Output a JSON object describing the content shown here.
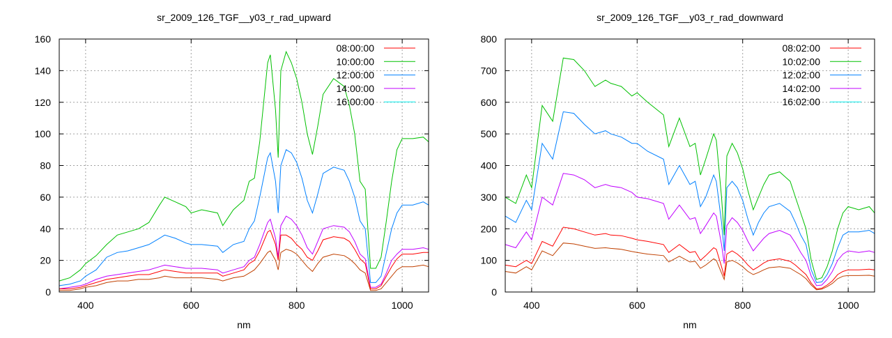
{
  "chart_data": [
    {
      "type": "line",
      "title": "sr_2009_126_TGF__y03_r_rad_upward",
      "xlabel": "nm",
      "ylabel": "",
      "xlim": [
        350,
        1050
      ],
      "ylim": [
        0,
        160
      ],
      "xticks": [
        400,
        600,
        800,
        1000
      ],
      "yticks": [
        0,
        20,
        40,
        60,
        80,
        100,
        120,
        140,
        160
      ],
      "grid": true,
      "legend": "top-right",
      "x": [
        350,
        370,
        390,
        400,
        420,
        440,
        460,
        480,
        500,
        520,
        540,
        550,
        570,
        590,
        600,
        620,
        650,
        660,
        680,
        700,
        710,
        720,
        730,
        745,
        750,
        760,
        765,
        770,
        780,
        790,
        800,
        810,
        820,
        830,
        840,
        850,
        870,
        890,
        900,
        910,
        920,
        930,
        940,
        950,
        960,
        970,
        980,
        990,
        1000,
        1020,
        1040,
        1050
      ],
      "series": [
        {
          "name": "08:00:00",
          "color": "#ff0000",
          "line_color": "#ff0000",
          "values": [
            2,
            2,
            3,
            4,
            6,
            8,
            9,
            10,
            11,
            11,
            13,
            14,
            13,
            12,
            12,
            12,
            12,
            10,
            12,
            14,
            18,
            20,
            26,
            38,
            39,
            30,
            20,
            36,
            36,
            34,
            30,
            27,
            22,
            20,
            26,
            33,
            35,
            34,
            32,
            27,
            21,
            18,
            2,
            2,
            4,
            10,
            16,
            21,
            24,
            24,
            25,
            25
          ]
        },
        {
          "name": "10:00:00",
          "color": "#00c000",
          "line_color": "#00c000",
          "values": [
            7,
            9,
            14,
            18,
            23,
            30,
            36,
            38,
            40,
            44,
            55,
            60,
            57,
            54,
            50,
            52,
            50,
            42,
            52,
            58,
            70,
            72,
            95,
            145,
            150,
            115,
            85,
            140,
            152,
            145,
            135,
            120,
            100,
            87,
            105,
            125,
            135,
            130,
            118,
            100,
            70,
            65,
            15,
            15,
            22,
            45,
            70,
            90,
            97,
            97,
            98,
            95
          ]
        },
        {
          "name": "12:00:00",
          "color": "#0080ff",
          "line_color": "#0080ff",
          "values": [
            4,
            5,
            7,
            10,
            14,
            22,
            25,
            26,
            28,
            30,
            34,
            36,
            34,
            31,
            30,
            30,
            29,
            25,
            30,
            32,
            40,
            45,
            60,
            85,
            88,
            70,
            50,
            80,
            90,
            88,
            82,
            72,
            58,
            50,
            62,
            75,
            79,
            77,
            70,
            60,
            45,
            40,
            6,
            6,
            10,
            25,
            40,
            50,
            55,
            55,
            57,
            55
          ]
        },
        {
          "name": "14:00:00",
          "color": "#c000ff",
          "line_color": "#c000ff",
          "values": [
            2,
            3,
            4,
            5,
            8,
            10,
            11,
            12,
            13,
            14,
            16,
            17,
            16,
            15,
            15,
            15,
            14,
            12,
            14,
            16,
            20,
            22,
            30,
            44,
            46,
            34,
            22,
            42,
            48,
            46,
            42,
            36,
            28,
            24,
            32,
            40,
            42,
            41,
            38,
            32,
            24,
            21,
            3,
            3,
            5,
            12,
            20,
            24,
            27,
            27,
            28,
            27
          ]
        },
        {
          "name": "16:00:00",
          "color": "#00eeee",
          "line_color": "#c04000",
          "values": [
            1,
            1,
            2,
            3,
            4,
            6,
            7,
            7,
            8,
            8,
            9,
            10,
            9,
            9,
            9,
            9,
            8,
            7,
            9,
            10,
            12,
            14,
            18,
            25,
            26,
            20,
            14,
            25,
            27,
            26,
            24,
            20,
            16,
            13,
            18,
            22,
            24,
            23,
            21,
            18,
            14,
            12,
            1,
            1,
            2,
            6,
            10,
            14,
            16,
            16,
            17,
            16
          ]
        }
      ]
    },
    {
      "type": "line",
      "title": "sr_2009_126_TGF__y03_r_rad_downward",
      "xlabel": "nm",
      "ylabel": "",
      "xlim": [
        350,
        1050
      ],
      "ylim": [
        0,
        800
      ],
      "xticks": [
        400,
        600,
        800,
        1000
      ],
      "yticks": [
        0,
        100,
        200,
        300,
        400,
        500,
        600,
        700,
        800
      ],
      "grid": true,
      "legend": "top-right",
      "x": [
        350,
        370,
        390,
        400,
        420,
        440,
        460,
        480,
        500,
        520,
        540,
        550,
        570,
        590,
        600,
        620,
        650,
        660,
        680,
        700,
        710,
        720,
        730,
        745,
        750,
        760,
        765,
        770,
        780,
        790,
        800,
        810,
        820,
        830,
        840,
        850,
        870,
        890,
        900,
        910,
        920,
        930,
        940,
        950,
        960,
        970,
        980,
        990,
        1000,
        1020,
        1040,
        1050
      ],
      "series": [
        {
          "name": "08:02:00",
          "color": "#ff0000",
          "line_color": "#ff0000",
          "values": [
            85,
            80,
            100,
            90,
            160,
            145,
            205,
            200,
            190,
            180,
            185,
            180,
            178,
            170,
            165,
            160,
            150,
            125,
            150,
            125,
            128,
            100,
            115,
            140,
            135,
            80,
            50,
            120,
            130,
            120,
            105,
            85,
            70,
            80,
            92,
            100,
            105,
            97,
            85,
            70,
            55,
            28,
            10,
            12,
            22,
            35,
            55,
            65,
            70,
            70,
            72,
            70
          ]
        },
        {
          "name": "10:02:00",
          "color": "#00c000",
          "line_color": "#00c000",
          "values": [
            300,
            280,
            370,
            330,
            590,
            540,
            740,
            735,
            700,
            650,
            670,
            660,
            650,
            620,
            630,
            600,
            560,
            460,
            550,
            460,
            470,
            370,
            420,
            500,
            480,
            300,
            180,
            430,
            470,
            440,
            390,
            320,
            260,
            300,
            340,
            370,
            380,
            350,
            300,
            250,
            200,
            100,
            40,
            45,
            80,
            130,
            200,
            250,
            270,
            260,
            270,
            250
          ]
        },
        {
          "name": "12:02:00",
          "color": "#0080ff",
          "line_color": "#0080ff",
          "values": [
            240,
            220,
            290,
            260,
            470,
            420,
            570,
            565,
            530,
            500,
            510,
            500,
            490,
            470,
            470,
            445,
            420,
            340,
            400,
            340,
            350,
            270,
            300,
            370,
            350,
            220,
            130,
            330,
            350,
            330,
            290,
            230,
            180,
            220,
            250,
            270,
            280,
            255,
            220,
            180,
            150,
            70,
            30,
            32,
            55,
            90,
            140,
            180,
            190,
            190,
            195,
            185
          ]
        },
        {
          "name": "14:02:00",
          "color": "#c000ff",
          "line_color": "#c000ff",
          "values": [
            150,
            140,
            190,
            165,
            300,
            275,
            375,
            370,
            355,
            330,
            340,
            335,
            330,
            315,
            300,
            295,
            280,
            230,
            275,
            230,
            235,
            185,
            210,
            250,
            240,
            150,
            90,
            210,
            235,
            220,
            195,
            160,
            130,
            150,
            170,
            185,
            195,
            180,
            155,
            125,
            100,
            50,
            20,
            22,
            40,
            65,
            100,
            120,
            130,
            125,
            130,
            125
          ]
        },
        {
          "name": "16:02:00",
          "color": "#00eeee",
          "line_color": "#c04000",
          "values": [
            65,
            60,
            80,
            70,
            130,
            115,
            155,
            152,
            145,
            138,
            140,
            138,
            135,
            128,
            125,
            120,
            115,
            95,
            113,
            95,
            97,
            75,
            85,
            105,
            100,
            60,
            40,
            95,
            100,
            92,
            80,
            65,
            55,
            62,
            70,
            77,
            80,
            75,
            65,
            55,
            42,
            22,
            7,
            9,
            17,
            27,
            42,
            50,
            52,
            52,
            53,
            50
          ]
        }
      ]
    }
  ]
}
